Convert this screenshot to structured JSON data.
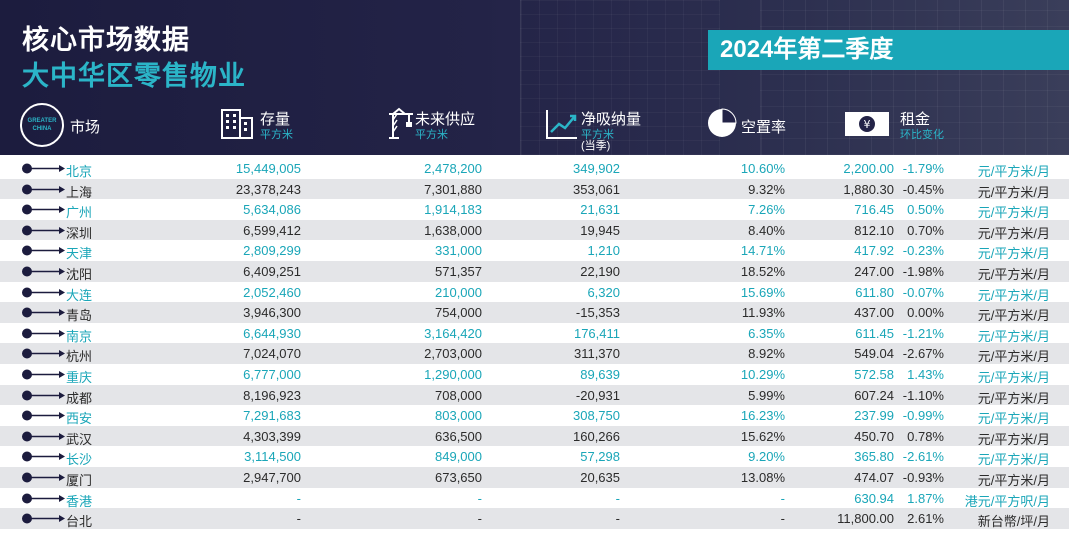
{
  "header": {
    "title_line1": "核心市场数据",
    "title_line2": "大中华区零售物业",
    "period": "2024年第二季度",
    "badge_line1": "GREATER",
    "badge_line2": "CHINA"
  },
  "columns": {
    "market": "市场",
    "stock": "存量",
    "stock_unit": "平方米",
    "supply": "未来供应",
    "supply_unit": "平方米",
    "absorption": "净吸纳量",
    "absorption_unit": "平方米",
    "absorption_note": "(当季)",
    "vacancy": "空置率",
    "rent": "租金",
    "rent_note": "环比变化"
  },
  "colors": {
    "accent": "#1aa6b8",
    "header_bg": "#1c1c3e",
    "row_alt": "#e4e5e8"
  },
  "rows": [
    {
      "city": "北京",
      "stock": "15,449,005",
      "supply": "2,478,200",
      "absorption": "349,902",
      "vacancy": "10.60%",
      "rent": "2,200.00",
      "change": "-1.79%",
      "unit": "元/平方米/月"
    },
    {
      "city": "上海",
      "stock": "23,378,243",
      "supply": "7,301,880",
      "absorption": "353,061",
      "vacancy": "9.32%",
      "rent": "1,880.30",
      "change": "-0.45%",
      "unit": "元/平方米/月"
    },
    {
      "city": "广州",
      "stock": "5,634,086",
      "supply": "1,914,183",
      "absorption": "21,631",
      "vacancy": "7.26%",
      "rent": "716.45",
      "change": "0.50%",
      "unit": "元/平方米/月"
    },
    {
      "city": "深圳",
      "stock": "6,599,412",
      "supply": "1,638,000",
      "absorption": "19,945",
      "vacancy": "8.40%",
      "rent": "812.10",
      "change": "0.70%",
      "unit": "元/平方米/月"
    },
    {
      "city": "天津",
      "stock": "2,809,299",
      "supply": "331,000",
      "absorption": "1,210",
      "vacancy": "14.71%",
      "rent": "417.92",
      "change": "-0.23%",
      "unit": "元/平方米/月"
    },
    {
      "city": "沈阳",
      "stock": "6,409,251",
      "supply": "571,357",
      "absorption": "22,190",
      "vacancy": "18.52%",
      "rent": "247.00",
      "change": "-1.98%",
      "unit": "元/平方米/月"
    },
    {
      "city": "大连",
      "stock": "2,052,460",
      "supply": "210,000",
      "absorption": "6,320",
      "vacancy": "15.69%",
      "rent": "611.80",
      "change": "-0.07%",
      "unit": "元/平方米/月"
    },
    {
      "city": "青岛",
      "stock": "3,946,300",
      "supply": "754,000",
      "absorption": "-15,353",
      "vacancy": "11.93%",
      "rent": "437.00",
      "change": "0.00%",
      "unit": "元/平方米/月"
    },
    {
      "city": "南京",
      "stock": "6,644,930",
      "supply": "3,164,420",
      "absorption": "176,411",
      "vacancy": "6.35%",
      "rent": "611.45",
      "change": "-1.21%",
      "unit": "元/平方米/月"
    },
    {
      "city": "杭州",
      "stock": "7,024,070",
      "supply": "2,703,000",
      "absorption": "311,370",
      "vacancy": "8.92%",
      "rent": "549.04",
      "change": "-2.67%",
      "unit": "元/平方米/月"
    },
    {
      "city": "重庆",
      "stock": "6,777,000",
      "supply": "1,290,000",
      "absorption": "89,639",
      "vacancy": "10.29%",
      "rent": "572.58",
      "change": "1.43%",
      "unit": "元/平方米/月"
    },
    {
      "city": "成都",
      "stock": "8,196,923",
      "supply": "708,000",
      "absorption": "-20,931",
      "vacancy": "5.99%",
      "rent": "607.24",
      "change": "-1.10%",
      "unit": "元/平方米/月"
    },
    {
      "city": "西安",
      "stock": "7,291,683",
      "supply": "803,000",
      "absorption": "308,750",
      "vacancy": "16.23%",
      "rent": "237.99",
      "change": "-0.99%",
      "unit": "元/平方米/月"
    },
    {
      "city": "武汉",
      "stock": "4,303,399",
      "supply": "636,500",
      "absorption": "160,266",
      "vacancy": "15.62%",
      "rent": "450.70",
      "change": "0.78%",
      "unit": "元/平方米/月"
    },
    {
      "city": "长沙",
      "stock": "3,114,500",
      "supply": "849,000",
      "absorption": "57,298",
      "vacancy": "9.20%",
      "rent": "365.80",
      "change": "-2.61%",
      "unit": "元/平方米/月"
    },
    {
      "city": "厦门",
      "stock": "2,947,700",
      "supply": "673,650",
      "absorption": "20,635",
      "vacancy": "13.08%",
      "rent": "474.07",
      "change": "-0.93%",
      "unit": "元/平方米/月"
    },
    {
      "city": "香港",
      "stock": "-",
      "supply": "-",
      "absorption": "-",
      "vacancy": "-",
      "rent": "630.94",
      "change": "1.87%",
      "unit": "港元/平方呎/月"
    },
    {
      "city": "台北",
      "stock": "-",
      "supply": "-",
      "absorption": "-",
      "vacancy": "-",
      "rent": "11,800.00",
      "change": "2.61%",
      "unit": "新台幣/坪/月"
    }
  ]
}
